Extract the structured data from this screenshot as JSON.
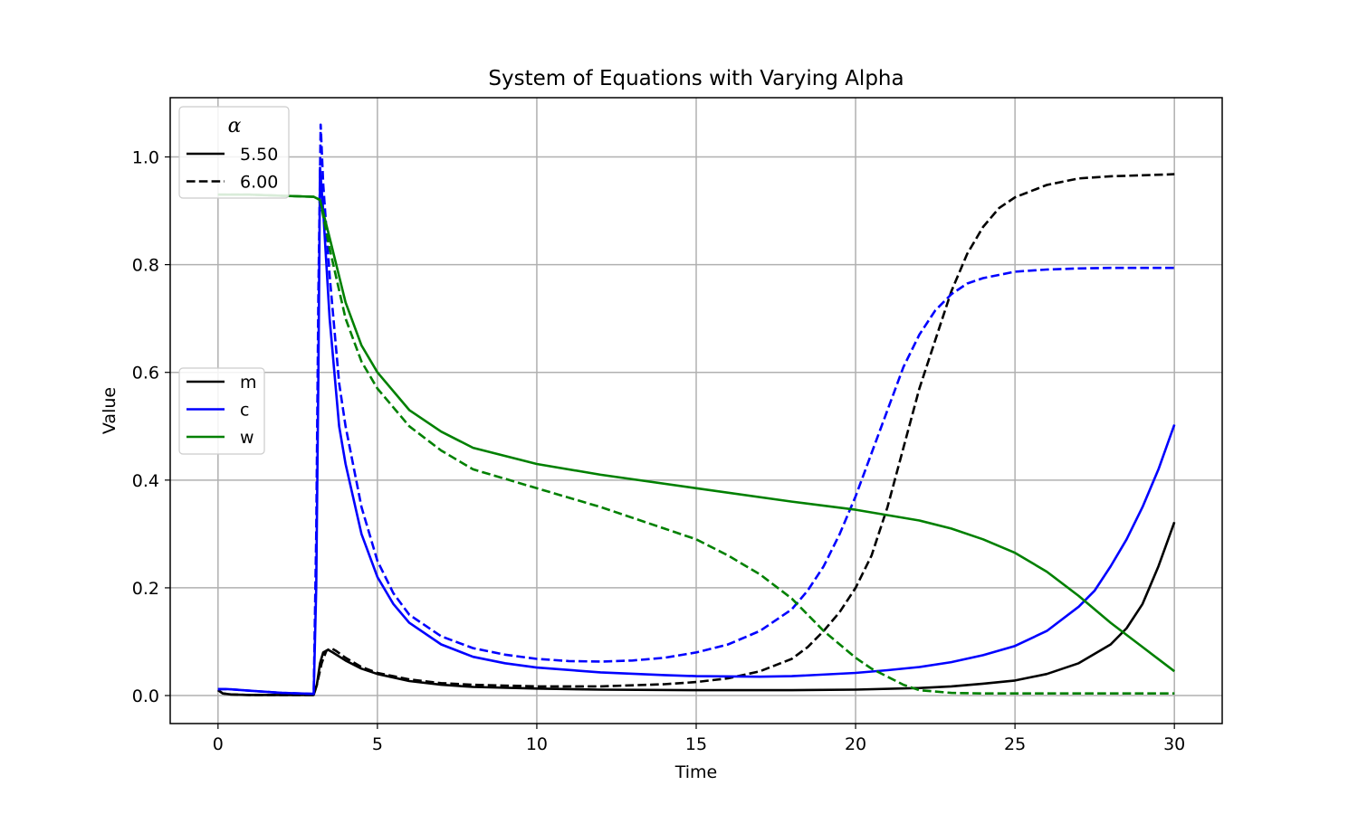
{
  "chart_data": {
    "type": "line",
    "title": "System of Equations with Varying Alpha",
    "xlabel": "Time",
    "ylabel": "Value",
    "xlim": [
      -1.5,
      31.5
    ],
    "ylim": [
      -0.052,
      1.11
    ],
    "xticks": [
      0,
      5,
      10,
      15,
      20,
      25,
      30
    ],
    "xtick_labels": [
      "0",
      "5",
      "10",
      "15",
      "20",
      "25",
      "30"
    ],
    "yticks": [
      0.0,
      0.2,
      0.4,
      0.6,
      0.8,
      1.0
    ],
    "ytick_labels": [
      "0.0",
      "0.2",
      "0.4",
      "0.6",
      "0.8",
      "1.0"
    ],
    "grid": true,
    "legends": [
      {
        "title": "α",
        "placement": "upper-left",
        "entries": [
          {
            "label": "5.50",
            "style": "solid",
            "color": "#000000"
          },
          {
            "label": "6.00",
            "style": "dashed",
            "color": "#000000"
          }
        ]
      },
      {
        "title": "",
        "placement": "center-left",
        "entries": [
          {
            "label": "m",
            "style": "solid",
            "color": "#000000"
          },
          {
            "label": "c",
            "style": "solid",
            "color": "#0000ff"
          },
          {
            "label": "w",
            "style": "solid",
            "color": "#008000"
          }
        ]
      }
    ],
    "series": [
      {
        "variable": "m",
        "alpha": "5.50",
        "color": "#000000",
        "style": "solid",
        "points": [
          [
            0,
            0.01
          ],
          [
            0.15,
            0.004
          ],
          [
            0.4,
            0.002
          ],
          [
            1,
            0.001
          ],
          [
            2,
            0.001
          ],
          [
            3.0,
            0.001
          ],
          [
            3.1,
            0.02
          ],
          [
            3.2,
            0.06
          ],
          [
            3.3,
            0.08
          ],
          [
            3.45,
            0.085
          ],
          [
            3.6,
            0.08
          ],
          [
            4,
            0.065
          ],
          [
            4.5,
            0.05
          ],
          [
            5,
            0.04
          ],
          [
            6,
            0.027
          ],
          [
            7,
            0.02
          ],
          [
            8,
            0.016
          ],
          [
            10,
            0.013
          ],
          [
            12,
            0.011
          ],
          [
            15,
            0.01
          ],
          [
            18,
            0.01
          ],
          [
            20,
            0.011
          ],
          [
            22,
            0.014
          ],
          [
            23,
            0.017
          ],
          [
            24,
            0.022
          ],
          [
            25,
            0.028
          ],
          [
            26,
            0.04
          ],
          [
            27,
            0.06
          ],
          [
            28,
            0.095
          ],
          [
            28.5,
            0.125
          ],
          [
            29,
            0.17
          ],
          [
            29.5,
            0.24
          ],
          [
            30,
            0.322
          ]
        ]
      },
      {
        "variable": "m",
        "alpha": "6.00",
        "color": "#000000",
        "style": "dashed",
        "points": [
          [
            0,
            0.01
          ],
          [
            0.15,
            0.004
          ],
          [
            0.4,
            0.002
          ],
          [
            1,
            0.001
          ],
          [
            2,
            0.001
          ],
          [
            3.0,
            0.001
          ],
          [
            3.1,
            0.02
          ],
          [
            3.25,
            0.06
          ],
          [
            3.4,
            0.083
          ],
          [
            3.55,
            0.088
          ],
          [
            3.7,
            0.083
          ],
          [
            4,
            0.07
          ],
          [
            4.5,
            0.053
          ],
          [
            5,
            0.042
          ],
          [
            6,
            0.03
          ],
          [
            7,
            0.023
          ],
          [
            8,
            0.02
          ],
          [
            10,
            0.017
          ],
          [
            12,
            0.017
          ],
          [
            14,
            0.021
          ],
          [
            15,
            0.025
          ],
          [
            16,
            0.032
          ],
          [
            17,
            0.045
          ],
          [
            18,
            0.068
          ],
          [
            18.5,
            0.09
          ],
          [
            19,
            0.12
          ],
          [
            19.5,
            0.155
          ],
          [
            20,
            0.2
          ],
          [
            20.5,
            0.26
          ],
          [
            21,
            0.35
          ],
          [
            21.5,
            0.46
          ],
          [
            22,
            0.57
          ],
          [
            22.5,
            0.66
          ],
          [
            23,
            0.75
          ],
          [
            23.5,
            0.82
          ],
          [
            24,
            0.87
          ],
          [
            24.5,
            0.905
          ],
          [
            25,
            0.925
          ],
          [
            26,
            0.948
          ],
          [
            27,
            0.96
          ],
          [
            28,
            0.964
          ],
          [
            29,
            0.966
          ],
          [
            30,
            0.968
          ]
        ]
      },
      {
        "variable": "c",
        "alpha": "5.50",
        "color": "#0000ff",
        "style": "solid",
        "points": [
          [
            0,
            0.012
          ],
          [
            0.3,
            0.012
          ],
          [
            1,
            0.009
          ],
          [
            2,
            0.005
          ],
          [
            3.0,
            0.003
          ],
          [
            3.08,
            0.2
          ],
          [
            3.15,
            0.6
          ],
          [
            3.2,
            0.98
          ],
          [
            3.3,
            0.9
          ],
          [
            3.5,
            0.7
          ],
          [
            3.8,
            0.5
          ],
          [
            4,
            0.43
          ],
          [
            4.5,
            0.3
          ],
          [
            5,
            0.22
          ],
          [
            5.5,
            0.17
          ],
          [
            6,
            0.135
          ],
          [
            7,
            0.095
          ],
          [
            8,
            0.072
          ],
          [
            9,
            0.06
          ],
          [
            10,
            0.052
          ],
          [
            12,
            0.043
          ],
          [
            14,
            0.038
          ],
          [
            15,
            0.036
          ],
          [
            17,
            0.035
          ],
          [
            18,
            0.036
          ],
          [
            20,
            0.042
          ],
          [
            21,
            0.047
          ],
          [
            22,
            0.053
          ],
          [
            23,
            0.062
          ],
          [
            24,
            0.075
          ],
          [
            25,
            0.092
          ],
          [
            26,
            0.12
          ],
          [
            27,
            0.165
          ],
          [
            27.5,
            0.195
          ],
          [
            28,
            0.24
          ],
          [
            28.5,
            0.29
          ],
          [
            29,
            0.35
          ],
          [
            29.5,
            0.42
          ],
          [
            30,
            0.503
          ]
        ]
      },
      {
        "variable": "c",
        "alpha": "6.00",
        "color": "#0000ff",
        "style": "dashed",
        "points": [
          [
            0,
            0.012
          ],
          [
            0.3,
            0.012
          ],
          [
            1,
            0.009
          ],
          [
            2,
            0.005
          ],
          [
            3.0,
            0.003
          ],
          [
            3.08,
            0.3
          ],
          [
            3.15,
            0.75
          ],
          [
            3.22,
            1.06
          ],
          [
            3.3,
            0.95
          ],
          [
            3.5,
            0.78
          ],
          [
            3.8,
            0.58
          ],
          [
            4,
            0.5
          ],
          [
            4.5,
            0.35
          ],
          [
            5,
            0.25
          ],
          [
            5.5,
            0.19
          ],
          [
            6,
            0.15
          ],
          [
            7,
            0.11
          ],
          [
            8,
            0.088
          ],
          [
            9,
            0.076
          ],
          [
            10,
            0.068
          ],
          [
            11,
            0.064
          ],
          [
            12,
            0.063
          ],
          [
            13,
            0.065
          ],
          [
            14,
            0.07
          ],
          [
            15,
            0.08
          ],
          [
            16,
            0.095
          ],
          [
            17,
            0.12
          ],
          [
            18,
            0.16
          ],
          [
            18.5,
            0.195
          ],
          [
            19,
            0.24
          ],
          [
            19.5,
            0.3
          ],
          [
            20,
            0.37
          ],
          [
            20.5,
            0.45
          ],
          [
            21,
            0.53
          ],
          [
            21.5,
            0.61
          ],
          [
            22,
            0.67
          ],
          [
            22.5,
            0.715
          ],
          [
            23,
            0.745
          ],
          [
            23.5,
            0.765
          ],
          [
            24,
            0.775
          ],
          [
            25,
            0.787
          ],
          [
            26,
            0.791
          ],
          [
            27,
            0.793
          ],
          [
            28,
            0.794
          ],
          [
            30,
            0.794
          ]
        ]
      },
      {
        "variable": "w",
        "alpha": "5.50",
        "color": "#008000",
        "style": "solid",
        "points": [
          [
            0,
            0.93
          ],
          [
            1,
            0.93
          ],
          [
            2,
            0.928
          ],
          [
            3.0,
            0.926
          ],
          [
            3.2,
            0.92
          ],
          [
            3.5,
            0.85
          ],
          [
            4,
            0.73
          ],
          [
            4.5,
            0.65
          ],
          [
            5,
            0.6
          ],
          [
            6,
            0.53
          ],
          [
            7,
            0.49
          ],
          [
            8,
            0.46
          ],
          [
            10,
            0.43
          ],
          [
            12,
            0.41
          ],
          [
            15,
            0.385
          ],
          [
            18,
            0.36
          ],
          [
            20,
            0.345
          ],
          [
            22,
            0.325
          ],
          [
            23,
            0.31
          ],
          [
            24,
            0.29
          ],
          [
            25,
            0.265
          ],
          [
            26,
            0.23
          ],
          [
            27,
            0.185
          ],
          [
            28,
            0.135
          ],
          [
            29,
            0.09
          ],
          [
            30,
            0.045
          ]
        ]
      },
      {
        "variable": "w",
        "alpha": "6.00",
        "color": "#008000",
        "style": "dashed",
        "points": [
          [
            0,
            0.93
          ],
          [
            1,
            0.93
          ],
          [
            2,
            0.928
          ],
          [
            3.0,
            0.926
          ],
          [
            3.2,
            0.92
          ],
          [
            3.5,
            0.83
          ],
          [
            4,
            0.7
          ],
          [
            4.5,
            0.62
          ],
          [
            5,
            0.57
          ],
          [
            6,
            0.5
          ],
          [
            7,
            0.455
          ],
          [
            8,
            0.42
          ],
          [
            10,
            0.385
          ],
          [
            12,
            0.35
          ],
          [
            14,
            0.31
          ],
          [
            15,
            0.29
          ],
          [
            16,
            0.26
          ],
          [
            17,
            0.225
          ],
          [
            18,
            0.18
          ],
          [
            19,
            0.12
          ],
          [
            20,
            0.07
          ],
          [
            20.5,
            0.05
          ],
          [
            21,
            0.035
          ],
          [
            21.5,
            0.02
          ],
          [
            22,
            0.01
          ],
          [
            23,
            0.005
          ],
          [
            24,
            0.004
          ],
          [
            26,
            0.004
          ],
          [
            30,
            0.004
          ]
        ]
      }
    ]
  }
}
